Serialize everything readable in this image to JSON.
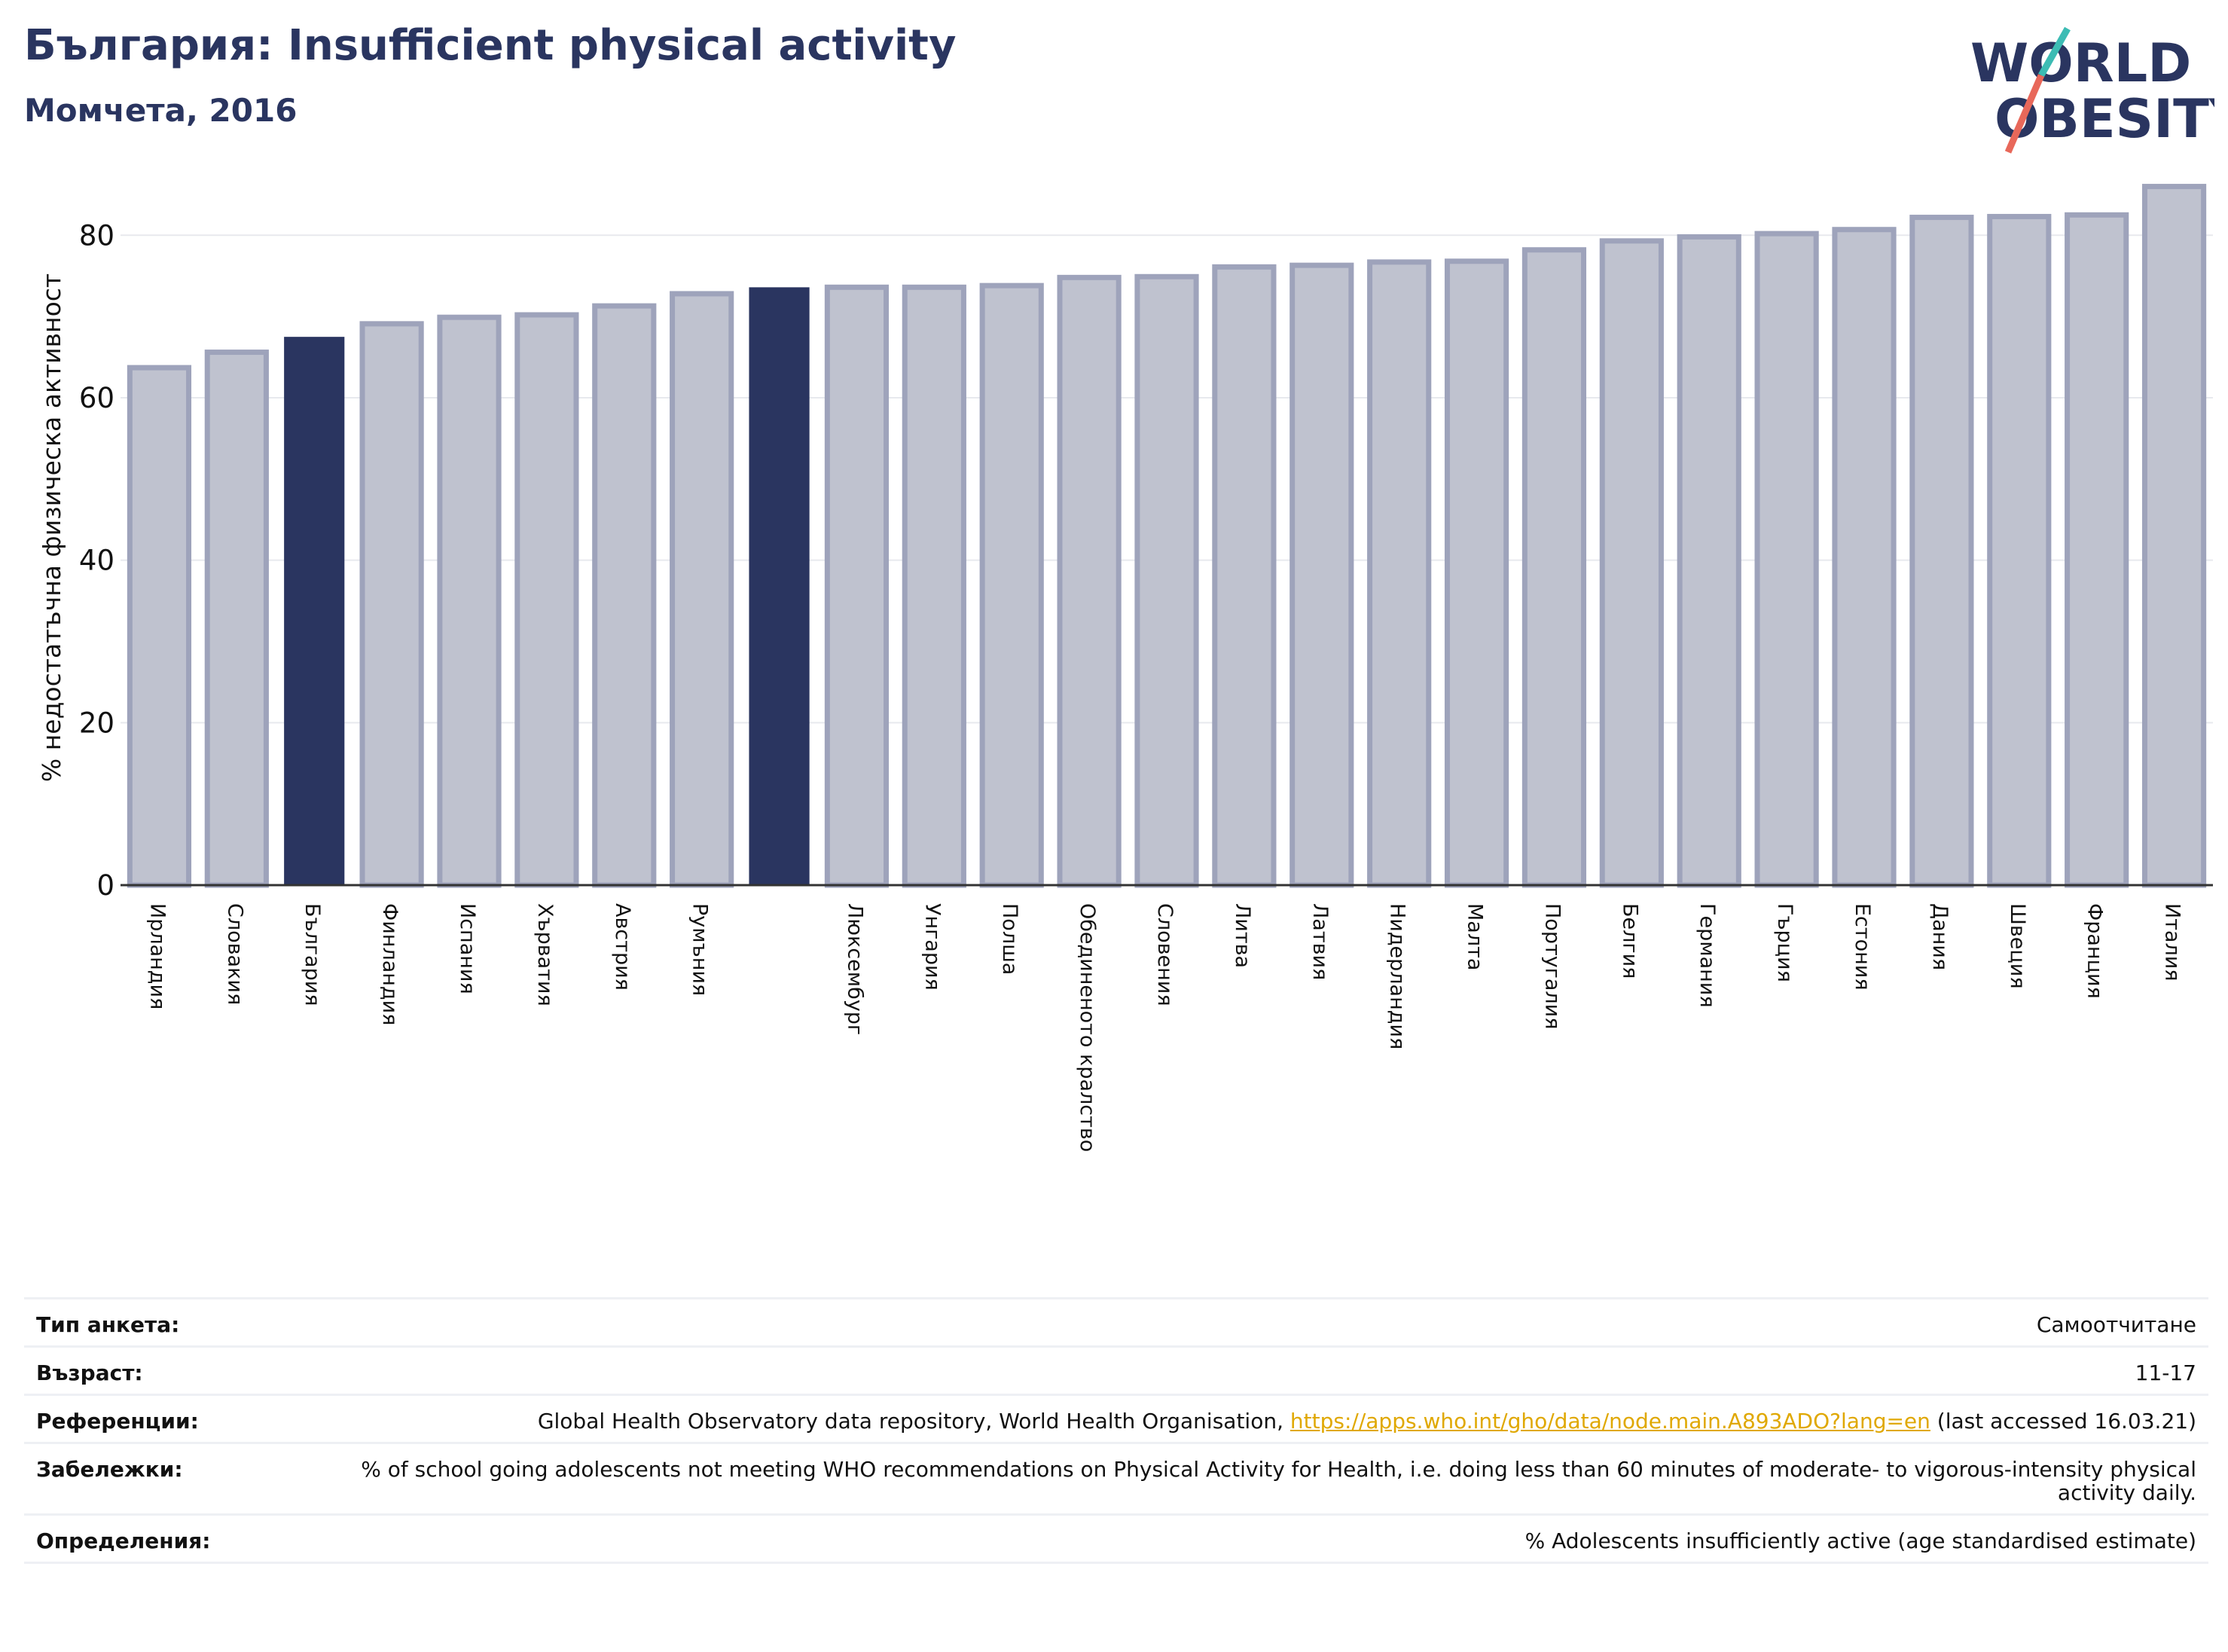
{
  "header": {
    "title": "България: Insufficient physical activity",
    "subtitle": "Момчета, 2016"
  },
  "logo": {
    "line1": "WORLD",
    "line2": "OBESITY"
  },
  "colors": {
    "bar": "#bfc2cf",
    "bar_border": "#9ea3bb",
    "highlight": "#2a3560",
    "grid": "#e8e9ee",
    "axis": "#333333",
    "link": "#e0a800"
  },
  "chart_data": {
    "type": "bar",
    "ylabel": "% недостатъчна физическа активност",
    "ylim": [
      0,
      88
    ],
    "yticks": [
      0,
      20,
      40,
      60,
      80
    ],
    "grid": true,
    "categories": [
      "Ирландия",
      "Словакия",
      "България",
      "Финландия",
      "Испания",
      "Хърватия",
      "Австрия",
      "Румъния",
      "",
      "Люксембург",
      "Унгария",
      "Полша",
      "Обединеното кралство",
      "Словения",
      "Литва",
      "Латвия",
      "Нидерландия",
      "Малта",
      "Португалия",
      "Белгия",
      "Германия",
      "Гърция",
      "Естония",
      "Дания",
      "Швеция",
      "Франция",
      "Италия"
    ],
    "values": [
      63.7,
      65.6,
      67.4,
      69.1,
      69.9,
      70.2,
      71.3,
      72.8,
      73.5,
      73.6,
      73.6,
      73.8,
      74.8,
      74.9,
      76.1,
      76.3,
      76.7,
      76.8,
      78.2,
      79.3,
      79.8,
      80.2,
      80.7,
      82.2,
      82.3,
      82.5,
      86.0
    ],
    "highlighted": [
      2,
      8
    ]
  },
  "meta": {
    "survey_type": {
      "label": "Тип анкета:",
      "value": "Самоотчитане"
    },
    "age": {
      "label": "Възраст:",
      "value": "11-17"
    },
    "references": {
      "label": "Референции:",
      "text_before": "Global Health Observatory data repository, World Health Organisation, ",
      "link": "https://apps.who.int/gho/data/node.main.A893ADO?lang=en",
      "text_after": " (last accessed 16.03.21)"
    },
    "notes": {
      "label": "Забележки:",
      "value": "% of school going adolescents not meeting WHO recommendations on Physical Activity for Health, i.e. doing less than 60 minutes of moderate- to vigorous-intensity physical activity daily."
    },
    "definitions": {
      "label": "Определения:",
      "value": "% Adolescents insufficiently active (age standardised estimate)"
    }
  }
}
